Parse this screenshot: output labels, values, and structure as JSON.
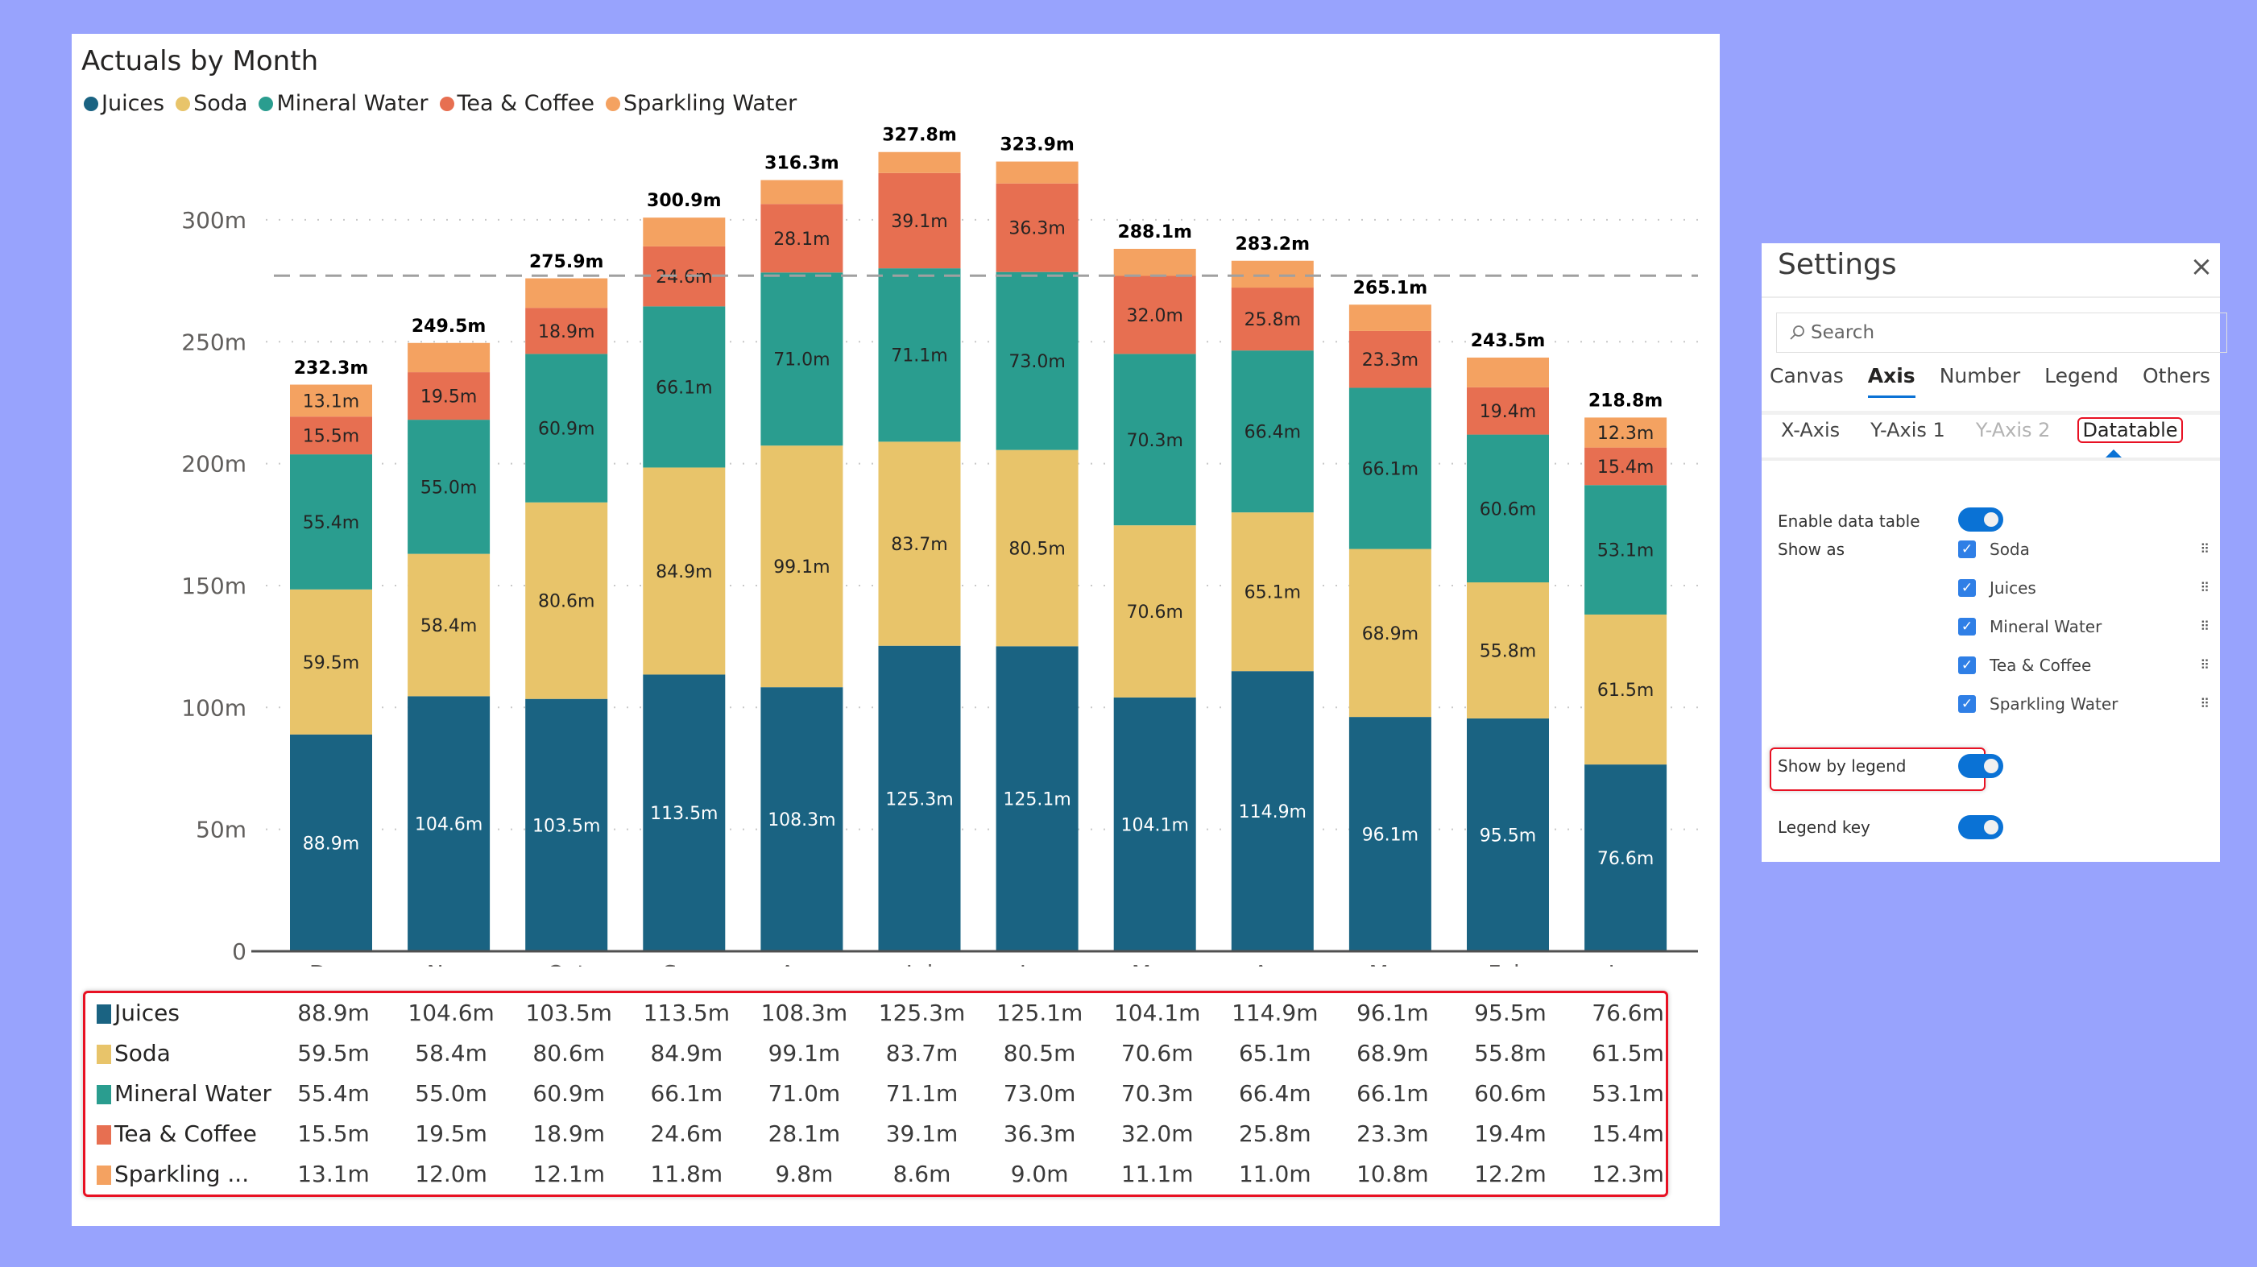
{
  "chart_data": {
    "type": "bar",
    "stacked": true,
    "title": "Actuals by Month",
    "xlabel": "",
    "ylabel": "",
    "ylim": [
      0,
      330
    ],
    "yticks": [
      0,
      50,
      100,
      150,
      200,
      250,
      300
    ],
    "ytick_labels": [
      "0",
      "50m",
      "100m",
      "150m",
      "200m",
      "250m",
      "300m"
    ],
    "grid": true,
    "legend_position": "top-left",
    "categories": [
      "Dec",
      "Nov",
      "Oct",
      "Sep",
      "Aug",
      "Jul",
      "Jun",
      "May",
      "Apr",
      "Mar",
      "Feb",
      "Jan"
    ],
    "series": [
      {
        "name": "Juices",
        "color": "#1a6382",
        "label_color": "#ffffff",
        "values": [
          88.9,
          104.6,
          103.5,
          113.5,
          108.3,
          125.3,
          125.1,
          104.1,
          114.9,
          96.1,
          95.5,
          76.6
        ],
        "labels": [
          "88.9m",
          "104.6m",
          "103.5m",
          "113.5m",
          "108.3m",
          "125.3m",
          "125.1m",
          "104.1m",
          "114.9m",
          "96.1m",
          "95.5m",
          "76.6m"
        ],
        "label_shown": [
          true,
          true,
          true,
          true,
          true,
          true,
          true,
          true,
          true,
          true,
          true,
          true
        ]
      },
      {
        "name": "Soda",
        "color": "#e8c46a",
        "label_color": "#252423",
        "values": [
          59.5,
          58.4,
          80.6,
          84.9,
          99.1,
          83.7,
          80.5,
          70.6,
          65.1,
          68.9,
          55.8,
          61.5
        ],
        "labels": [
          "59.5m",
          "58.4m",
          "80.6m",
          "84.9m",
          "99.1m",
          "83.7m",
          "80.5m",
          "70.6m",
          "65.1m",
          "68.9m",
          "55.8m",
          "61.5m"
        ],
        "label_shown": [
          true,
          true,
          true,
          true,
          true,
          true,
          true,
          true,
          true,
          true,
          true,
          true
        ]
      },
      {
        "name": "Mineral Water",
        "color": "#2a9d8f",
        "label_color": "#252423",
        "values": [
          55.4,
          55.0,
          60.9,
          66.1,
          71.0,
          71.1,
          73.0,
          70.3,
          66.4,
          66.1,
          60.6,
          53.1
        ],
        "labels": [
          "55.4m",
          "55.0m",
          "60.9m",
          "66.1m",
          "71.0m",
          "71.1m",
          "73.0m",
          "70.3m",
          "66.4m",
          "66.1m",
          "60.6m",
          "53.1m"
        ],
        "label_shown": [
          true,
          true,
          true,
          true,
          true,
          true,
          true,
          true,
          true,
          true,
          true,
          true
        ]
      },
      {
        "name": "Tea & Coffee",
        "color": "#e76f51",
        "label_color": "#252423",
        "values": [
          15.5,
          19.5,
          18.9,
          24.6,
          28.1,
          39.1,
          36.3,
          32.0,
          25.8,
          23.3,
          19.4,
          15.4
        ],
        "labels": [
          "15.5m",
          "19.5m",
          "18.9m",
          "24.6m",
          "28.1m",
          "39.1m",
          "36.3m",
          "32.0m",
          "25.8m",
          "23.3m",
          "19.4m",
          "15.4m"
        ],
        "label_shown": [
          true,
          true,
          true,
          true,
          true,
          true,
          true,
          true,
          true,
          true,
          true,
          true
        ]
      },
      {
        "name": "Sparkling Water",
        "color": "#f4a261",
        "label_color": "#252423",
        "values": [
          13.1,
          12.0,
          12.1,
          11.8,
          9.8,
          8.6,
          9.0,
          11.1,
          11.0,
          10.8,
          12.2,
          12.3
        ],
        "labels": [
          "13.1m",
          "12.0m",
          "12.1m",
          "11.8m",
          "9.8m",
          "8.6m",
          "9.0m",
          "11.1m",
          "11.0m",
          "10.8m",
          "12.2m",
          "12.3m"
        ],
        "label_shown": [
          true,
          false,
          false,
          false,
          false,
          false,
          false,
          false,
          false,
          false,
          false,
          true
        ]
      }
    ],
    "totals": [
      232.3,
      249.5,
      275.9,
      300.9,
      316.3,
      327.8,
      323.9,
      288.1,
      283.2,
      265.1,
      243.5,
      218.8
    ],
    "total_labels": [
      "232.3m",
      "249.5m",
      "275.9m",
      "300.9m",
      "316.3m",
      "327.8m",
      "323.9m",
      "288.1m",
      "283.2m",
      "265.1m",
      "243.5m",
      "218.8m"
    ],
    "reference_line": {
      "style": "dashed",
      "value": 277.1
    }
  },
  "datatable": {
    "rows": [
      {
        "name": "Juices",
        "color": "#1a6382",
        "values": [
          "88.9m",
          "104.6m",
          "103.5m",
          "113.5m",
          "108.3m",
          "125.3m",
          "125.1m",
          "104.1m",
          "114.9m",
          "96.1m",
          "95.5m",
          "76.6m"
        ]
      },
      {
        "name": "Soda",
        "color": "#e8c46a",
        "values": [
          "59.5m",
          "58.4m",
          "80.6m",
          "84.9m",
          "99.1m",
          "83.7m",
          "80.5m",
          "70.6m",
          "65.1m",
          "68.9m",
          "55.8m",
          "61.5m"
        ]
      },
      {
        "name": "Mineral Water",
        "color": "#2a9d8f",
        "values": [
          "55.4m",
          "55.0m",
          "60.9m",
          "66.1m",
          "71.0m",
          "71.1m",
          "73.0m",
          "70.3m",
          "66.4m",
          "66.1m",
          "60.6m",
          "53.1m"
        ]
      },
      {
        "name": "Tea & Coffee",
        "color": "#e76f51",
        "values": [
          "15.5m",
          "19.5m",
          "18.9m",
          "24.6m",
          "28.1m",
          "39.1m",
          "36.3m",
          "32.0m",
          "25.8m",
          "23.3m",
          "19.4m",
          "15.4m"
        ]
      },
      {
        "name": "Sparkling ...",
        "color": "#f4a261",
        "values": [
          "13.1m",
          "12.0m",
          "12.1m",
          "11.8m",
          "9.8m",
          "8.6m",
          "9.0m",
          "11.1m",
          "11.0m",
          "10.8m",
          "12.2m",
          "12.3m"
        ]
      }
    ]
  },
  "settings": {
    "title": "Settings",
    "close_icon": "close-icon",
    "search_placeholder": "Search",
    "tabs": [
      "Canvas",
      "Axis",
      "Number",
      "Legend",
      "Others"
    ],
    "active_tab": "Axis",
    "subtabs": [
      "X-Axis",
      "Y-Axis 1",
      "Y-Axis 2",
      "Datatable"
    ],
    "active_subtab": "Datatable",
    "disabled_subtab": "Y-Axis 2",
    "enable_data_table": {
      "label": "Enable data table",
      "on": true
    },
    "show_as": {
      "label": "Show as",
      "items": [
        {
          "label": "Soda",
          "checked": true
        },
        {
          "label": "Juices",
          "checked": true
        },
        {
          "label": "Mineral Water",
          "checked": true
        },
        {
          "label": "Tea & Coffee",
          "checked": true
        },
        {
          "label": "Sparkling Water",
          "checked": true
        }
      ]
    },
    "show_by_legend": {
      "label": "Show by legend",
      "on": true
    },
    "legend_key": {
      "label": "Legend key",
      "on": true
    },
    "accent_color": "#0a72d5",
    "highlight_color": "#e81123"
  }
}
